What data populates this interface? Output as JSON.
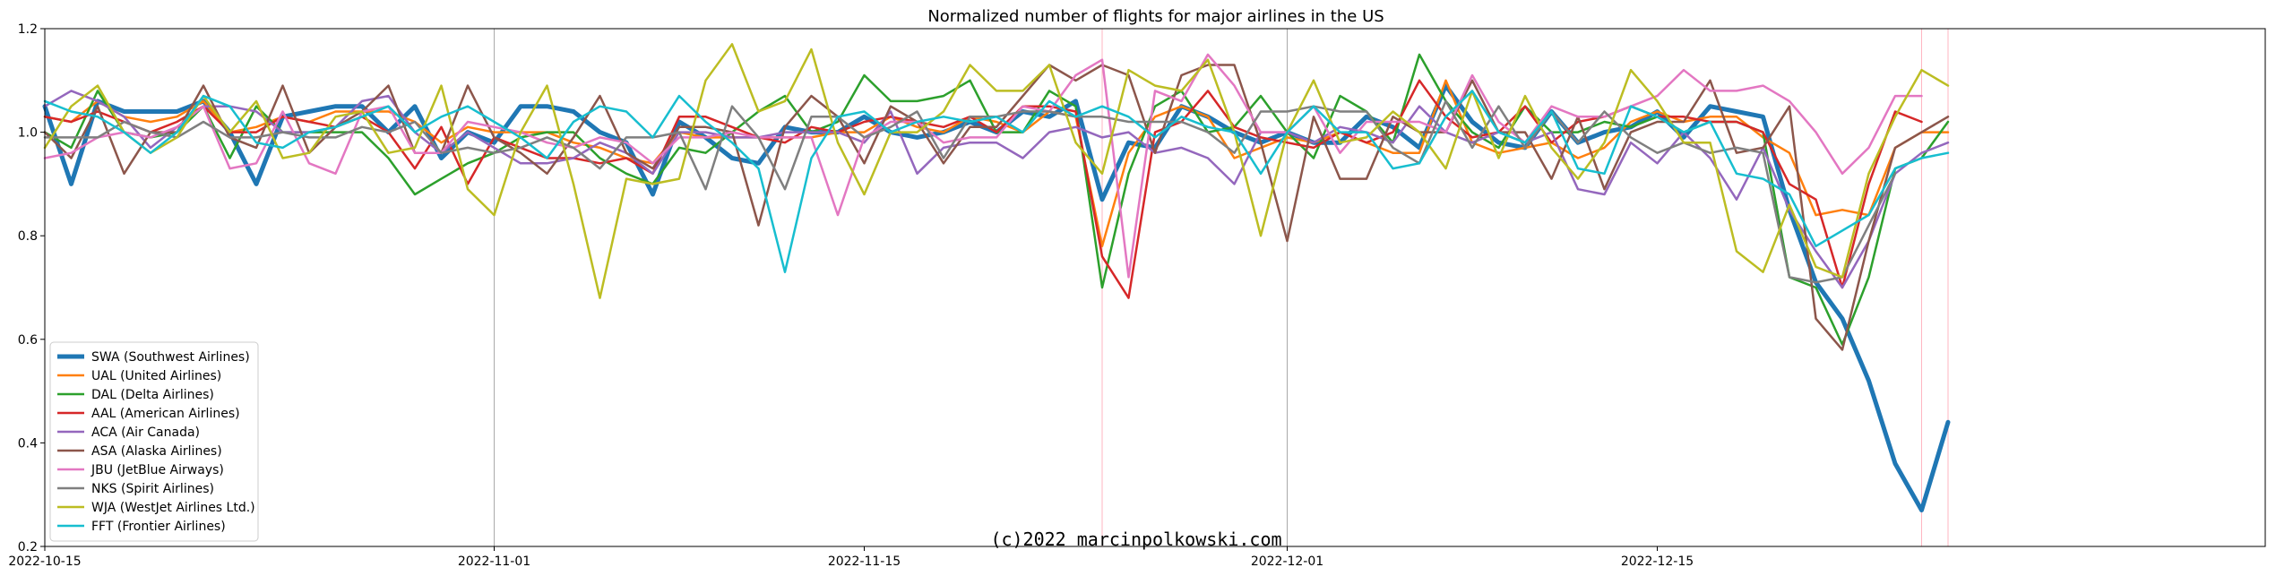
{
  "chart_data": {
    "type": "line",
    "title": "Normalized number of flights for major airlines in the US",
    "xlabel": "",
    "ylabel": "",
    "xlim": [
      "2022-10-15",
      "2023-01-07"
    ],
    "ylim": [
      0.2,
      1.2
    ],
    "x_ticks": [
      "2022-10-15",
      "2022-11-01",
      "2022-11-15",
      "2022-12-01",
      "2022-12-15"
    ],
    "y_ticks": [
      0.2,
      0.4,
      0.6,
      0.8,
      1.0,
      1.2
    ],
    "y_tick_labels": [
      "0.2",
      "0.4",
      "0.6",
      "0.8",
      "1.0",
      "1.2"
    ],
    "grid": false,
    "legend_position": "lower-left",
    "reference_lines": [
      {
        "date": "2022-11-01",
        "color": "#aaaaaa"
      },
      {
        "date": "2022-11-24",
        "color": "#ffb6c1"
      },
      {
        "date": "2022-12-01",
        "color": "#aaaaaa"
      },
      {
        "date": "2022-12-25",
        "color": "#ffb6c1"
      },
      {
        "date": "2022-12-26",
        "color": "#ffb6c1"
      }
    ],
    "start_date": "2022-10-15",
    "series": [
      {
        "name": "SWA (Southwest Airlines)",
        "color": "#1f77b4",
        "width": 5,
        "values": [
          1.05,
          0.9,
          1.06,
          1.04,
          1.04,
          1.04,
          1.06,
          1.0,
          0.9,
          1.03,
          1.04,
          1.05,
          1.05,
          1.0,
          1.05,
          0.95,
          1.0,
          0.98,
          1.05,
          1.05,
          1.04,
          1.0,
          0.98,
          0.88,
          1.02,
          0.99,
          0.95,
          0.94,
          1.01,
          1.0,
          1.0,
          1.03,
          1.0,
          0.99,
          1.0,
          1.02,
          1.0,
          1.04,
          1.03,
          1.06,
          0.87,
          0.98,
          0.97,
          1.05,
          1.03,
          1.0,
          0.98,
          1.0,
          0.98,
          0.98,
          1.03,
          1.01,
          0.97,
          1.09,
          1.02,
          0.98,
          0.97,
          1.04,
          0.98,
          1.0,
          1.01,
          1.04,
          0.99,
          1.05,
          1.04,
          1.03,
          0.85,
          0.71,
          0.64,
          0.52,
          0.36,
          0.27,
          0.44
        ]
      },
      {
        "name": "UAL (United Airlines)",
        "color": "#ff7f0e",
        "width": 2.5,
        "values": [
          1.03,
          1.02,
          1.06,
          1.03,
          1.02,
          1.03,
          1.06,
          1.0,
          1.01,
          1.03,
          1.02,
          1.04,
          1.04,
          1.04,
          1.02,
          0.98,
          1.01,
          1.0,
          1.0,
          1.0,
          0.98,
          0.97,
          0.95,
          0.94,
          1.0,
          0.99,
          0.99,
          0.99,
          0.99,
          0.99,
          1.0,
          1.0,
          1.03,
          1.01,
          1.0,
          1.03,
          1.02,
          1.0,
          1.04,
          1.03,
          0.78,
          0.96,
          1.03,
          1.05,
          1.03,
          0.95,
          0.97,
          0.99,
          0.98,
          1.0,
          0.98,
          0.96,
          0.96,
          1.1,
          0.98,
          0.96,
          0.97,
          0.98,
          0.95,
          0.97,
          1.02,
          1.04,
          1.02,
          1.03,
          1.03,
          0.99,
          0.96,
          0.84,
          0.85,
          0.84,
          0.97,
          1.0,
          1.0
        ]
      },
      {
        "name": "DAL (Delta Airlines)",
        "color": "#2ca02c",
        "width": 2.5,
        "values": [
          1.0,
          0.97,
          1.08,
          1.0,
          0.99,
          1.0,
          1.05,
          0.95,
          1.05,
          1.0,
          1.0,
          1.0,
          1.0,
          0.95,
          0.88,
          0.91,
          0.94,
          0.96,
          0.99,
          1.0,
          1.0,
          0.95,
          0.92,
          0.9,
          0.97,
          0.96,
          1.0,
          1.04,
          1.07,
          1.0,
          1.02,
          1.11,
          1.06,
          1.06,
          1.07,
          1.1,
          1.0,
          1.0,
          1.08,
          1.05,
          0.7,
          0.92,
          1.05,
          1.08,
          1.0,
          1.01,
          1.07,
          1.0,
          0.95,
          1.07,
          1.04,
          0.98,
          1.15,
          1.06,
          1.0,
          0.97,
          1.05,
          1.0,
          1.0,
          1.02,
          1.01,
          1.03,
          1.0,
          1.02,
          1.02,
          1.0,
          0.72,
          0.7,
          0.59,
          0.72,
          0.93,
          0.95,
          1.02
        ]
      },
      {
        "name": "AAL (American Airlines)",
        "color": "#d62728",
        "width": 2.5,
        "values": [
          1.03,
          1.02,
          1.04,
          1.02,
          1.0,
          1.02,
          1.05,
          1.0,
          1.0,
          1.03,
          1.02,
          1.01,
          1.03,
          1.0,
          0.93,
          1.01,
          0.9,
          0.99,
          0.97,
          0.95,
          0.95,
          0.94,
          0.95,
          0.92,
          1.03,
          1.03,
          1.01,
          0.99,
          0.98,
          1.01,
          1.0,
          1.02,
          1.03,
          1.02,
          1.01,
          1.03,
          1.0,
          1.05,
          1.05,
          1.04,
          0.76,
          0.68,
          1.0,
          1.02,
          1.08,
          1.01,
          0.99,
          0.98,
          0.97,
          1.0,
          0.98,
          1.0,
          1.1,
          1.03,
          0.99,
          1.0,
          1.05,
          0.98,
          1.02,
          1.03,
          1.05,
          1.03,
          1.03,
          1.02,
          1.02,
          1.0,
          0.9,
          0.87,
          0.7,
          0.9,
          1.04,
          1.02
        ]
      },
      {
        "name": "ACA (Air Canada)",
        "color": "#9467bd",
        "width": 2.5,
        "values": [
          1.05,
          1.08,
          1.06,
          1.03,
          0.97,
          1.01,
          1.05,
          1.05,
          1.04,
          1.0,
          1.0,
          1.01,
          1.06,
          1.07,
          1.0,
          0.96,
          1.0,
          0.97,
          0.94,
          0.94,
          0.95,
          0.98,
          0.96,
          0.92,
          1.0,
          1.0,
          0.99,
          0.99,
          1.0,
          1.0,
          1.0,
          0.98,
          1.04,
          0.92,
          0.97,
          0.98,
          0.98,
          0.95,
          1.0,
          1.01,
          0.99,
          1.0,
          0.96,
          0.97,
          0.95,
          0.9,
          1.0,
          1.0,
          0.98,
          1.01,
          1.0,
          0.98,
          1.05,
          1.0,
          0.98,
          1.0,
          0.98,
          1.0,
          0.89,
          0.88,
          0.98,
          0.94,
          1.0,
          0.95,
          0.87,
          0.97,
          0.85,
          0.77,
          0.7,
          0.79,
          0.92,
          0.96,
          0.98
        ]
      },
      {
        "name": "ASA (Alaska Airlines)",
        "color": "#8c564b",
        "width": 2.5,
        "values": [
          1.0,
          0.95,
          1.05,
          0.92,
          1.0,
          1.0,
          1.09,
          0.99,
          0.97,
          1.09,
          0.96,
          1.01,
          1.04,
          1.09,
          0.96,
          0.96,
          1.09,
          0.99,
          0.96,
          0.92,
          0.99,
          1.07,
          0.96,
          0.93,
          1.01,
          1.01,
          1.0,
          0.82,
          1.01,
          1.07,
          1.03,
          0.94,
          1.05,
          1.02,
          0.94,
          1.01,
          1.01,
          1.07,
          1.13,
          1.1,
          1.13,
          1.11,
          0.96,
          1.11,
          1.13,
          1.13,
          0.98,
          0.79,
          1.03,
          0.91,
          0.91,
          1.03,
          1.0,
          1.0,
          1.1,
          1.0,
          1.0,
          0.91,
          1.03,
          0.89,
          1.0,
          1.02,
          1.02,
          1.1,
          0.96,
          0.97,
          1.05,
          0.64,
          0.58,
          0.79,
          0.97,
          1.0,
          1.03
        ]
      },
      {
        "name": "JBU (JetBlue Airways)",
        "color": "#e377c2",
        "width": 2.5,
        "values": [
          0.95,
          0.96,
          0.99,
          1.0,
          0.99,
          1.01,
          1.05,
          0.93,
          0.94,
          1.04,
          0.94,
          0.92,
          1.04,
          1.05,
          0.96,
          0.96,
          1.02,
          1.01,
          1.0,
          0.98,
          0.97,
          0.99,
          0.98,
          0.94,
          0.99,
          0.99,
          1.0,
          0.99,
          0.99,
          0.99,
          0.84,
          0.99,
          1.02,
          1.02,
          0.98,
          0.99,
          0.99,
          1.05,
          1.04,
          1.11,
          1.14,
          0.72,
          1.08,
          1.06,
          1.15,
          1.09,
          1.0,
          1.0,
          1.05,
          0.96,
          1.02,
          1.02,
          1.02,
          1.0,
          1.11,
          1.02,
          0.98,
          1.05,
          1.03,
          1.03,
          1.05,
          1.07,
          1.12,
          1.08,
          1.08,
          1.09,
          1.06,
          1.0,
          0.92,
          0.97,
          1.07,
          1.07
        ]
      },
      {
        "name": "NKS (Spirit Airlines)",
        "color": "#7f7f7f",
        "width": 2.5,
        "values": [
          0.99,
          0.99,
          0.99,
          1.02,
          1.0,
          0.99,
          1.02,
          0.99,
          0.99,
          1.0,
          0.99,
          0.99,
          1.01,
          1.0,
          1.02,
          0.96,
          0.97,
          0.96,
          0.97,
          0.99,
          0.97,
          0.93,
          0.99,
          0.99,
          1.0,
          0.89,
          1.05,
          0.99,
          0.89,
          1.03,
          1.03,
          0.99,
          1.01,
          1.04,
          0.95,
          1.03,
          1.03,
          1.04,
          1.04,
          1.03,
          1.03,
          1.02,
          1.02,
          1.02,
          1.0,
          0.96,
          1.04,
          1.04,
          1.05,
          1.04,
          1.04,
          0.97,
          0.94,
          1.06,
          0.97,
          1.05,
          0.97,
          1.04,
          0.98,
          1.04,
          0.99,
          0.96,
          0.98,
          0.96,
          0.97,
          0.96,
          0.72,
          0.71,
          0.72,
          0.82,
          0.92
        ]
      },
      {
        "name": "WJA (WestJet Airlines Ltd.)",
        "color": "#bcbd22",
        "width": 2.5,
        "values": [
          0.97,
          1.05,
          1.09,
          1.0,
          0.96,
          0.99,
          1.07,
          1.0,
          1.06,
          0.95,
          0.96,
          1.03,
          1.04,
          0.96,
          0.97,
          1.09,
          0.89,
          0.84,
          1.0,
          1.09,
          0.9,
          0.68,
          0.91,
          0.9,
          0.91,
          1.1,
          1.17,
          1.04,
          1.06,
          1.16,
          0.98,
          0.88,
          1.0,
          1.0,
          1.04,
          1.13,
          1.08,
          1.08,
          1.13,
          0.98,
          0.92,
          1.12,
          1.09,
          1.08,
          1.14,
          1.0,
          0.8,
          1.0,
          1.1,
          0.98,
          0.99,
          1.04,
          1.0,
          0.93,
          1.08,
          0.95,
          1.07,
          0.97,
          0.91,
          0.98,
          1.12,
          1.06,
          0.98,
          0.98,
          0.77,
          0.73,
          0.86,
          0.74,
          0.72,
          0.92,
          1.03,
          1.12,
          1.09
        ]
      },
      {
        "name": "FFT (Frontier Airlines)",
        "color": "#17becf",
        "width": 2.5,
        "values": [
          1.06,
          1.04,
          1.03,
          1.0,
          0.96,
          1.0,
          1.07,
          1.05,
          0.98,
          0.97,
          1.0,
          1.01,
          1.03,
          1.05,
          1.0,
          1.03,
          1.05,
          1.02,
          0.99,
          0.95,
          1.02,
          1.05,
          1.04,
          0.99,
          1.07,
          1.02,
          0.98,
          0.93,
          0.73,
          0.95,
          1.03,
          1.04,
          1.0,
          1.02,
          1.03,
          1.02,
          1.03,
          1.0,
          1.06,
          1.03,
          1.05,
          1.03,
          0.99,
          1.03,
          1.01,
          1.0,
          0.92,
          1.0,
          1.05,
          1.0,
          1.0,
          0.93,
          0.94,
          1.03,
          1.08,
          1.0,
          0.98,
          1.04,
          0.93,
          0.92,
          1.05,
          1.03,
          1.0,
          1.02,
          0.92,
          0.91,
          0.88,
          0.78,
          0.81,
          0.84,
          0.93,
          0.95,
          0.96
        ]
      }
    ],
    "watermark": "(c)2022 marcinpolkowski.com"
  }
}
